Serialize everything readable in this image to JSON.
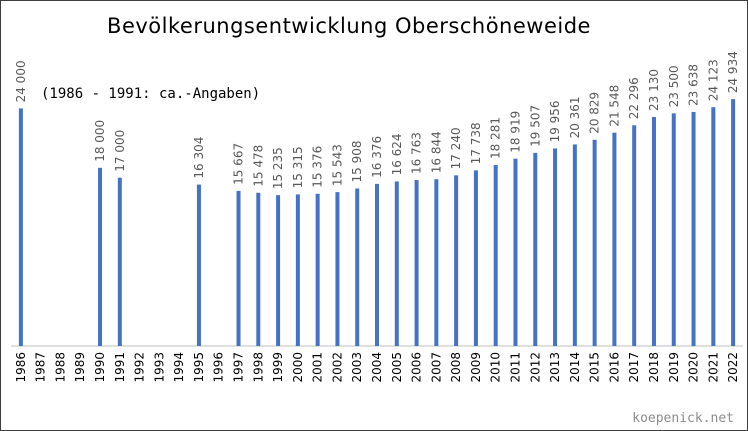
{
  "chart_data": {
    "type": "bar",
    "title": "Bevölkerungsentwicklung Oberschöneweide",
    "subtitle": "(1986 - 1991: ca.-Angaben)",
    "credit": "koepenick.net",
    "xlabel": "",
    "ylabel": "",
    "ylim": [
      0,
      25000
    ],
    "grid": false,
    "legend": "none",
    "bar_color": "#4472C4",
    "categories": [
      "1986",
      "1987",
      "1988",
      "1989",
      "1990",
      "1991",
      "1992",
      "1993",
      "1994",
      "1995",
      "1996",
      "1997",
      "1998",
      "1999",
      "2000",
      "2001",
      "2002",
      "2003",
      "2004",
      "2005",
      "2006",
      "2007",
      "2008",
      "2009",
      "2010",
      "2011",
      "2012",
      "2013",
      "2014",
      "2015",
      "2016",
      "2017",
      "2018",
      "2019",
      "2020",
      "2021",
      "2022"
    ],
    "values": [
      24000,
      null,
      null,
      null,
      18000,
      17000,
      null,
      null,
      null,
      16304,
      null,
      15667,
      15478,
      15235,
      15315,
      15376,
      15543,
      15908,
      16376,
      16624,
      16763,
      16844,
      17240,
      17738,
      18281,
      18919,
      19507,
      19956,
      20361,
      20829,
      21548,
      22296,
      23130,
      23500,
      23638,
      24123,
      24934
    ],
    "data_labels": [
      "24 000",
      "",
      "",
      "",
      "18 000",
      "17 000",
      "",
      "",
      "",
      "16 304",
      "",
      "15 667",
      "15 478",
      "15 235",
      "15 315",
      "15 376",
      "15 543",
      "15 908",
      "16 376",
      "16 624",
      "16 763",
      "16 844",
      "17 240",
      "17 738",
      "18 281",
      "18 919",
      "19 507",
      "19 956",
      "20 361",
      "20 829",
      "21 548",
      "22 296",
      "23 130",
      "23 500",
      "23 638",
      "24 123",
      "24 934"
    ]
  }
}
